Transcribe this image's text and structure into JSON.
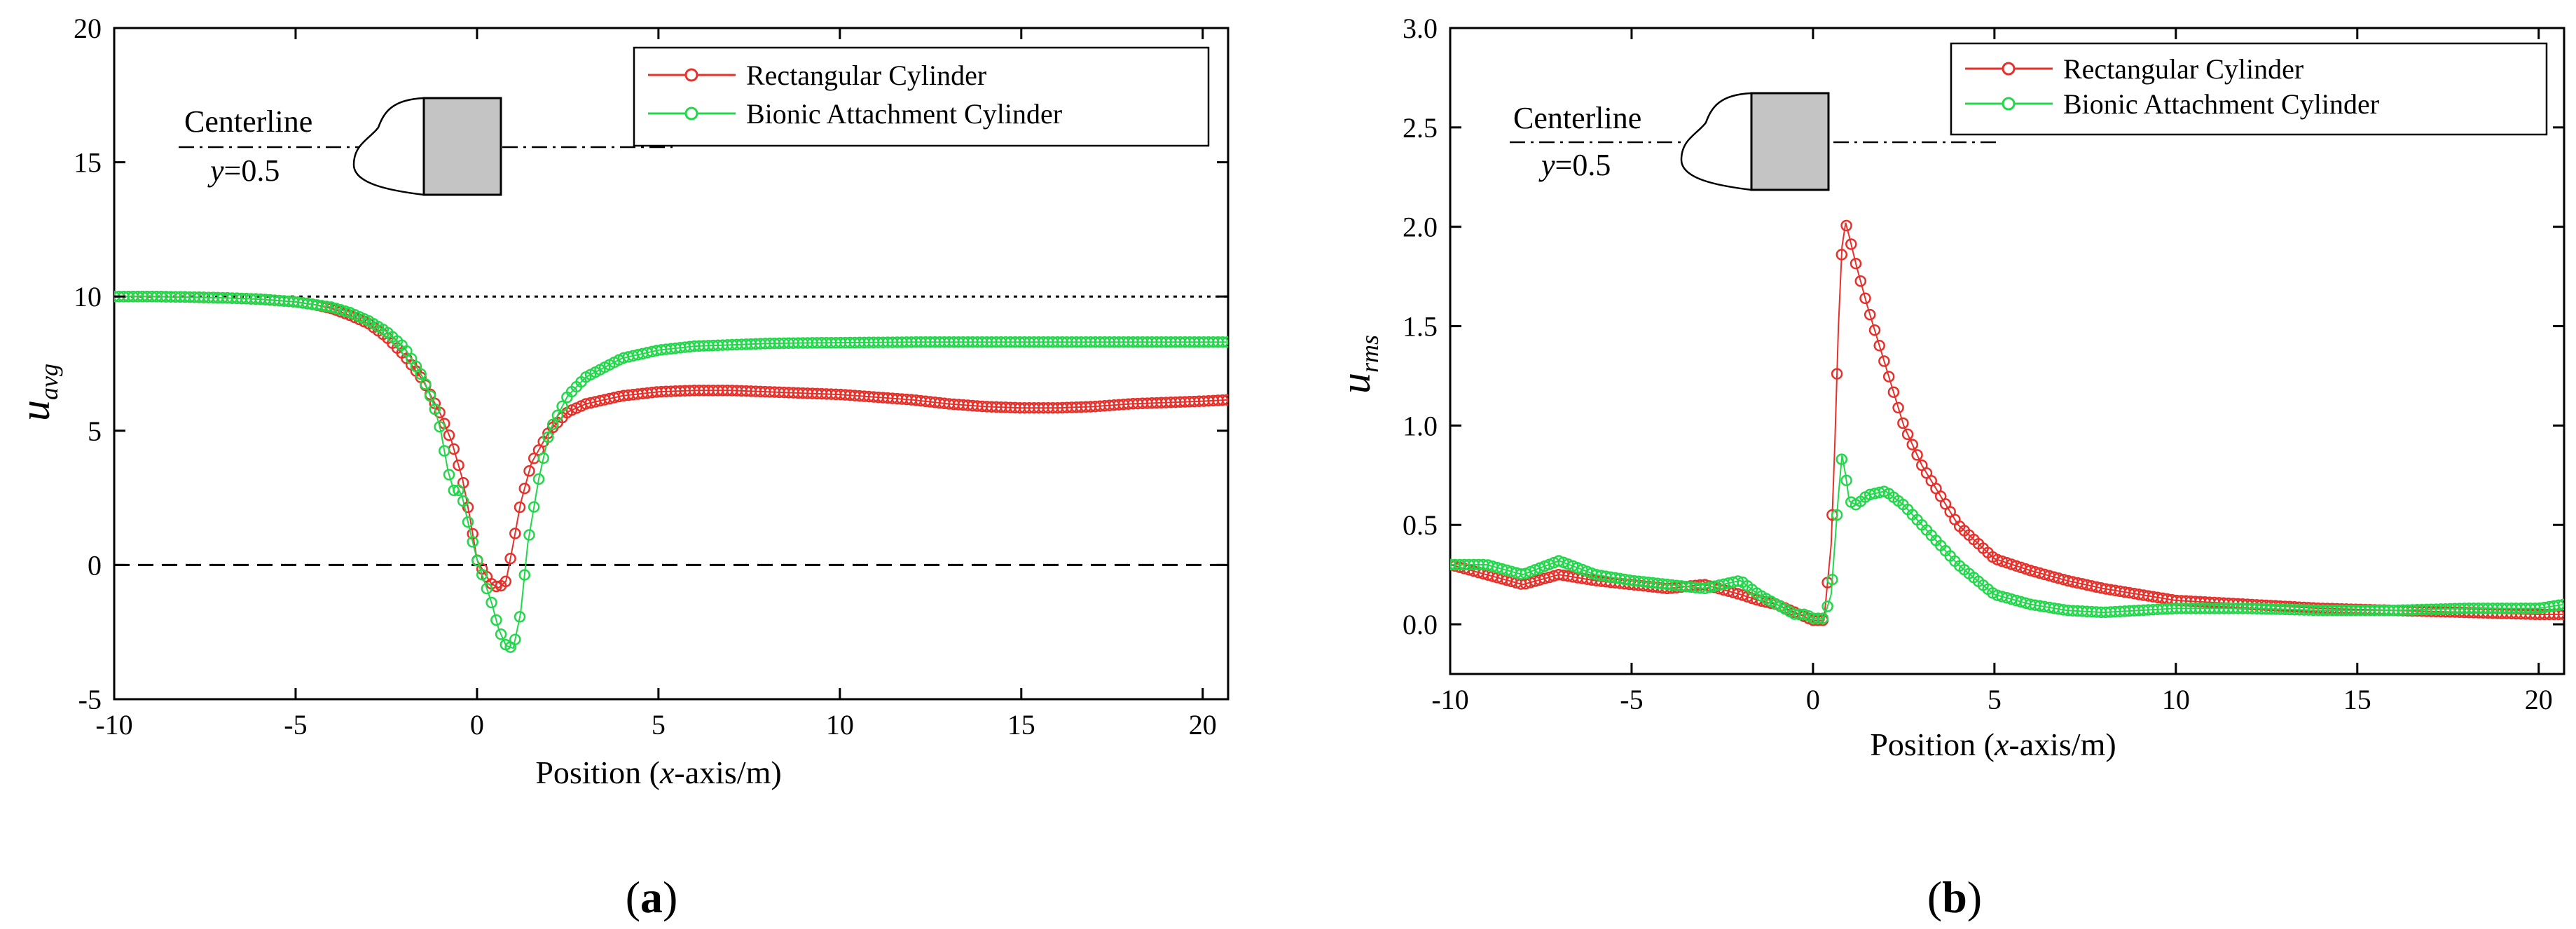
{
  "chart_data": [
    {
      "type": "line",
      "panel": "a",
      "panel_label": "(a)",
      "xlabel": "Position (x-axis/m)",
      "ylabel": {
        "main": "u",
        "sub": "avg"
      },
      "xlim": [
        -10,
        20.7
      ],
      "ylim": [
        -5,
        20
      ],
      "xticks": [
        -10,
        -5,
        0,
        5,
        10,
        15,
        20
      ],
      "yticks": [
        -5,
        0,
        5,
        10,
        15,
        20
      ],
      "reference_lines": [
        {
          "y": 10,
          "style": "dotted"
        },
        {
          "y": 0,
          "style": "dashed"
        }
      ],
      "legend": {
        "placement": "top-right"
      },
      "annotation": {
        "centerline_label": "Centerline",
        "y_label": "y",
        "y_value": "=0.5"
      },
      "series": [
        {
          "name": "Rectangular Cylinder",
          "color": "#e8302a",
          "x": [
            -10,
            -9,
            -8,
            -7,
            -6,
            -5,
            -4.5,
            -4,
            -3.5,
            -3,
            -2.5,
            -2,
            -1.5,
            -1,
            -0.7,
            -0.4,
            -0.2,
            0,
            0.2,
            0.4,
            0.6,
            0.8,
            1.0,
            1.2,
            1.5,
            2,
            2.5,
            3,
            4,
            5,
            6,
            7,
            8,
            9,
            10,
            11,
            12,
            13,
            14,
            15,
            16,
            17,
            18,
            19,
            20,
            20.7
          ],
          "y": [
            10,
            10,
            9.98,
            9.95,
            9.9,
            9.8,
            9.7,
            9.55,
            9.3,
            9.0,
            8.5,
            7.8,
            6.9,
            5.6,
            4.6,
            3.2,
            1.8,
            0.2,
            -0.3,
            -0.7,
            -0.85,
            -0.6,
            0.8,
            2.3,
            3.8,
            5.0,
            5.7,
            6.0,
            6.3,
            6.45,
            6.5,
            6.5,
            6.45,
            6.4,
            6.35,
            6.25,
            6.15,
            6.0,
            5.9,
            5.85,
            5.85,
            5.9,
            6.0,
            6.05,
            6.1,
            6.15
          ]
        },
        {
          "name": "Bionic Attachment Cylinder",
          "color": "#22d84a",
          "x": [
            -10,
            -9,
            -8,
            -7,
            -6,
            -5,
            -4,
            -3.5,
            -3,
            -2.5,
            -2,
            -1.5,
            -1.2,
            -1.0,
            -0.8,
            -0.6,
            -0.5,
            -0.4,
            -0.2,
            0,
            0.2,
            0.4,
            0.6,
            0.8,
            1.0,
            1.2,
            1.4,
            1.7,
            2,
            2.5,
            3,
            4,
            5,
            6,
            7,
            8,
            9,
            10,
            12,
            14,
            16,
            18,
            20,
            20.7
          ],
          "y": [
            10,
            10,
            9.98,
            9.95,
            9.9,
            9.8,
            9.6,
            9.4,
            9.1,
            8.7,
            8.1,
            7.0,
            6.0,
            5.0,
            3.5,
            2.6,
            2.8,
            2.5,
            1.3,
            0.2,
            -0.6,
            -1.4,
            -2.4,
            -3.0,
            -3.1,
            -1.8,
            0.8,
            3.2,
            5.0,
            6.3,
            7.0,
            7.7,
            8.0,
            8.15,
            8.2,
            8.25,
            8.27,
            8.28,
            8.3,
            8.3,
            8.3,
            8.3,
            8.3,
            8.3
          ]
        }
      ]
    },
    {
      "type": "line",
      "panel": "b",
      "panel_label": "(b)",
      "xlabel": "Position (x-axis/m)",
      "ylabel": {
        "main": "u",
        "sub": "rms"
      },
      "xlim": [
        -10,
        20.7
      ],
      "ylim": [
        -0.25,
        3.0
      ],
      "xticks": [
        -10,
        -5,
        0,
        5,
        10,
        15,
        20
      ],
      "yticks": [
        0.0,
        0.5,
        1.0,
        1.5,
        2.0,
        2.5,
        3.0
      ],
      "ytick_labels": [
        "0.0",
        "0.5",
        "1.0",
        "1.5",
        "2.0",
        "2.5",
        "3.0"
      ],
      "legend": {
        "placement": "top-right"
      },
      "annotation": {
        "centerline_label": "Centerline",
        "y_label": "y",
        "y_value": "=0.5"
      },
      "series": [
        {
          "name": "Rectangular Cylinder",
          "color": "#e8302a",
          "x": [
            -10,
            -9,
            -8,
            -7,
            -6,
            -5,
            -4,
            -3,
            -2,
            -1.5,
            -1,
            -0.5,
            0,
            0.3,
            0.5,
            0.6,
            0.7,
            0.8,
            0.9,
            1.0,
            1.2,
            1.5,
            2,
            2.5,
            3,
            4,
            5,
            6,
            7,
            8,
            9,
            10,
            12,
            14,
            16,
            18,
            20,
            20.7
          ],
          "y": [
            0.3,
            0.25,
            0.2,
            0.25,
            0.22,
            0.2,
            0.18,
            0.2,
            0.15,
            0.12,
            0.1,
            0.06,
            0.02,
            0.02,
            0.4,
            0.9,
            1.5,
            1.9,
            2.02,
            1.95,
            1.8,
            1.6,
            1.3,
            1.0,
            0.8,
            0.5,
            0.33,
            0.27,
            0.22,
            0.18,
            0.15,
            0.12,
            0.1,
            0.08,
            0.07,
            0.06,
            0.05,
            0.05
          ]
        },
        {
          "name": "Bionic Attachment Cylinder",
          "color": "#22d84a",
          "x": [
            -10,
            -9,
            -8,
            -7,
            -6,
            -5,
            -4,
            -3,
            -2,
            -1.5,
            -1,
            -0.5,
            -0.2,
            0,
            0.3,
            0.5,
            0.6,
            0.7,
            0.8,
            0.9,
            1.0,
            1.2,
            1.5,
            2,
            2.5,
            3,
            4,
            5,
            6,
            7,
            8,
            9,
            10,
            12,
            14,
            16,
            18,
            20,
            20.7
          ],
          "y": [
            0.3,
            0.3,
            0.25,
            0.32,
            0.25,
            0.22,
            0.2,
            0.18,
            0.22,
            0.15,
            0.1,
            0.05,
            0.05,
            0.03,
            0.03,
            0.15,
            0.4,
            0.65,
            0.85,
            0.75,
            0.62,
            0.6,
            0.65,
            0.67,
            0.6,
            0.5,
            0.3,
            0.15,
            0.1,
            0.07,
            0.06,
            0.07,
            0.08,
            0.08,
            0.07,
            0.07,
            0.08,
            0.08,
            0.1
          ]
        }
      ]
    }
  ]
}
